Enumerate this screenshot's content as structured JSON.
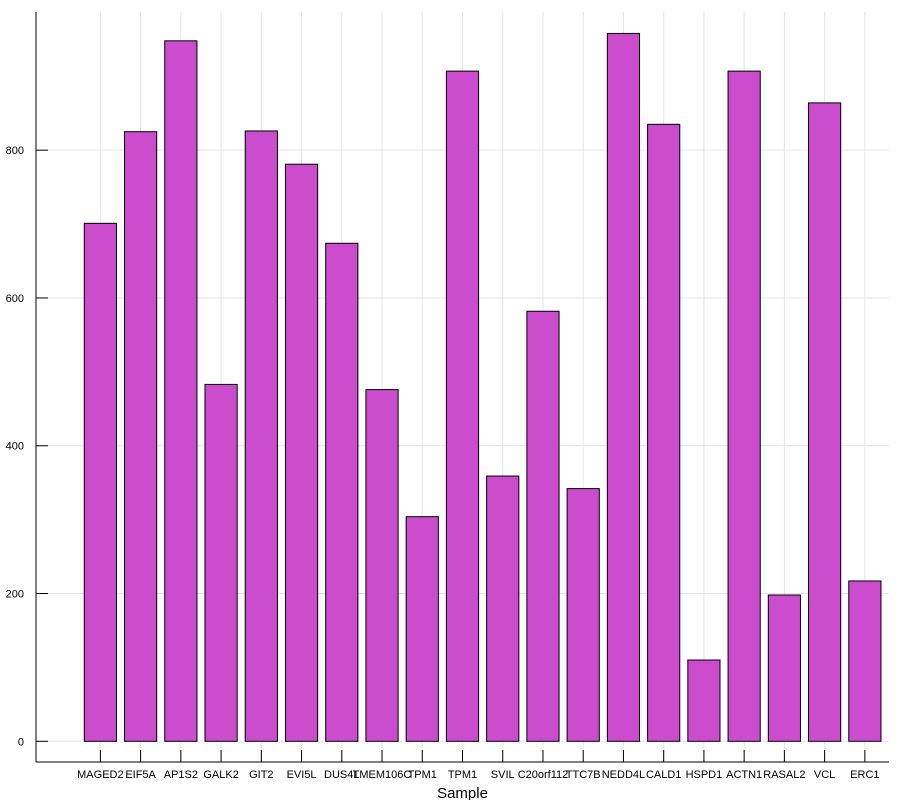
{
  "chart_data": {
    "type": "bar",
    "title": "",
    "xlabel": "Sample",
    "ylabel": "",
    "categories": [
      "MAGED2",
      "EIF5A",
      "AP1S2",
      "GALK2",
      "GIT2",
      "EVI5L",
      "DUS4L",
      "TMEM106C",
      "TPM1",
      "TPM1",
      "SVIL",
      "C20orf112",
      "TTC7B",
      "NEDD4L",
      "CALD1",
      "HSPD1",
      "ACTN1",
      "RASAL2",
      "VCL",
      "ERC1"
    ],
    "values": [
      701,
      825,
      948,
      483,
      826,
      781,
      674,
      476,
      304,
      907,
      359,
      582,
      342,
      958,
      835,
      110,
      907,
      198,
      864,
      217
    ],
    "ylim": [
      -28,
      987
    ],
    "yticks": [
      0,
      200,
      400,
      600,
      800
    ],
    "grid": true,
    "legend": "none",
    "colors": {
      "bar_fill": "#cc4cce",
      "bar_stroke": "#000000",
      "grid": "#e6e6e6",
      "axis": "#000000"
    }
  }
}
